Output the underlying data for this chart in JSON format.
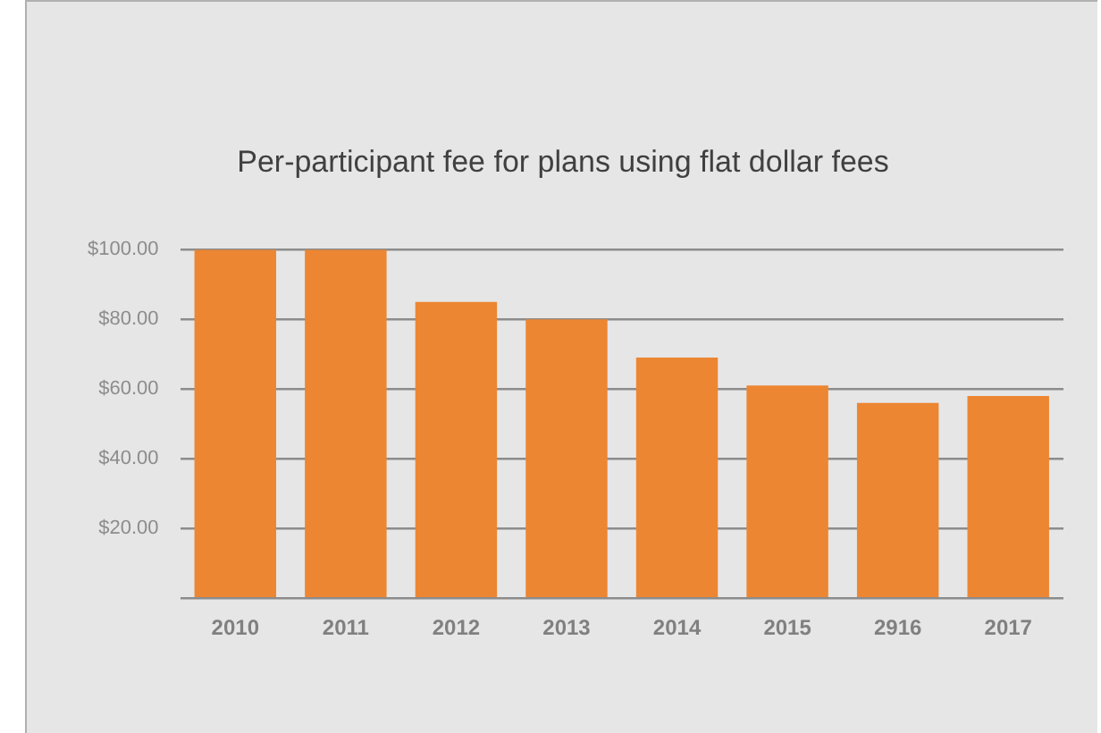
{
  "chart_data": {
    "type": "bar",
    "title": "Per-participant fee for plans using flat dollar fees",
    "categories": [
      "2010",
      "2011",
      "2012",
      "2013",
      "2014",
      "2015",
      "2916",
      "2017"
    ],
    "values": [
      100,
      100,
      85,
      80,
      69,
      61,
      56,
      58
    ],
    "color": "#ed8632",
    "ylim": [
      0,
      100
    ],
    "yticks": [
      {
        "value": 0,
        "label": null
      },
      {
        "value": 20,
        "label": "$20.00"
      },
      {
        "value": 40,
        "label": "$40.00"
      },
      {
        "value": 60,
        "label": "$60.00"
      },
      {
        "value": 80,
        "label": "$80.00"
      },
      {
        "value": 100,
        "label": "$100.00"
      }
    ],
    "grid": "y",
    "legend": false
  }
}
